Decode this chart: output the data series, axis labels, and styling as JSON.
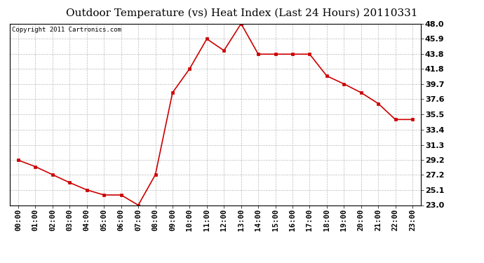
{
  "title": "Outdoor Temperature (vs) Heat Index (Last 24 Hours) 20110331",
  "copyright_text": "Copyright 2011 Cartronics.com",
  "x_labels": [
    "00:00",
    "01:00",
    "02:00",
    "03:00",
    "04:00",
    "05:00",
    "06:00",
    "07:00",
    "08:00",
    "09:00",
    "10:00",
    "11:00",
    "12:00",
    "13:00",
    "14:00",
    "15:00",
    "16:00",
    "17:00",
    "18:00",
    "19:00",
    "20:00",
    "21:00",
    "22:00",
    "23:00"
  ],
  "y_values": [
    29.2,
    28.3,
    27.2,
    26.1,
    25.1,
    24.4,
    24.4,
    23.0,
    27.2,
    38.5,
    41.8,
    45.9,
    44.3,
    48.0,
    43.8,
    43.8,
    43.8,
    43.8,
    40.8,
    39.7,
    38.5,
    37.0,
    34.8,
    34.8
  ],
  "y_ticks": [
    23.0,
    25.1,
    27.2,
    29.2,
    31.3,
    33.4,
    35.5,
    37.6,
    39.7,
    41.8,
    43.8,
    45.9,
    48.0
  ],
  "ylim": [
    23.0,
    48.0
  ],
  "line_color": "#cc0000",
  "marker": "s",
  "marker_size": 2.5,
  "line_width": 1.2,
  "grid_color": "#bbbbbb",
  "background_color": "#ffffff",
  "title_fontsize": 11,
  "copyright_fontsize": 6.5,
  "tick_fontsize": 7.5,
  "ytick_fontsize": 8,
  "ytick_fontweight": "bold"
}
